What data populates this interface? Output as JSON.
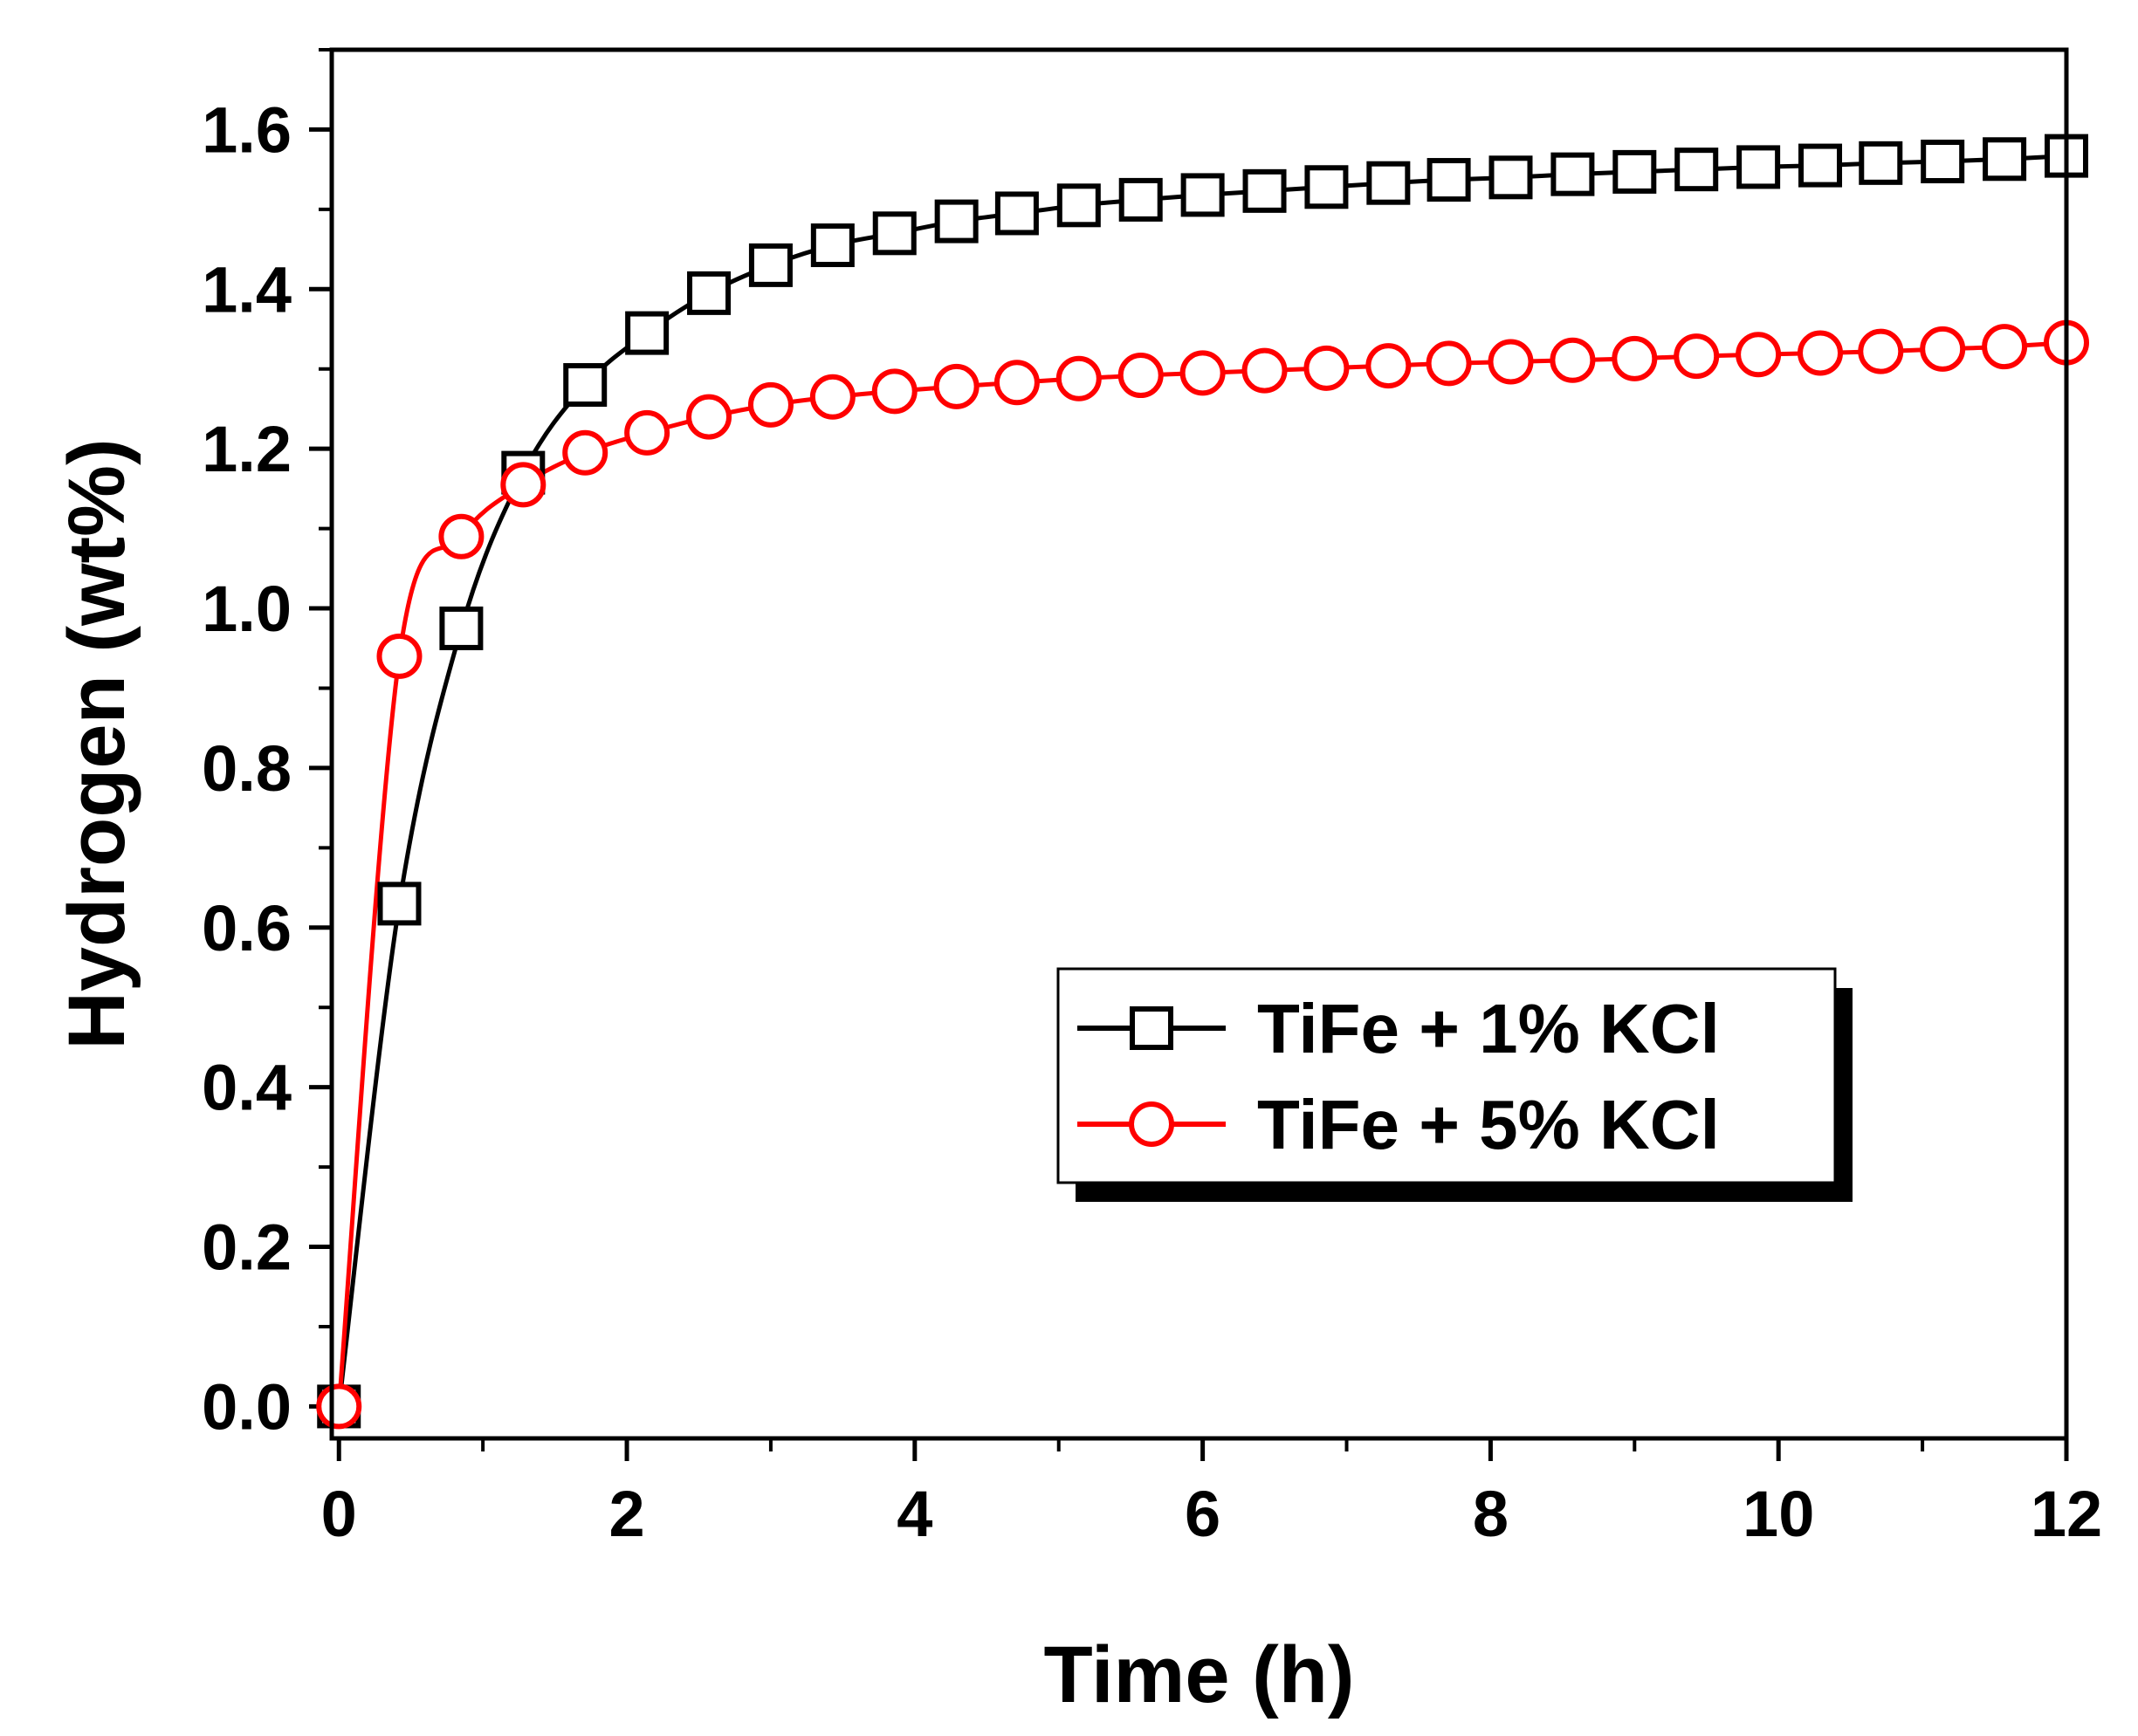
{
  "chart_data": {
    "type": "line",
    "title": "",
    "xlabel": "Time (h)",
    "ylabel": "Hydrogen (wt%)",
    "xlim": [
      -0.05,
      12
    ],
    "ylim": [
      -0.04,
      1.7
    ],
    "x_ticks": [
      0,
      2,
      4,
      6,
      8,
      10,
      12
    ],
    "x_tick_labels": [
      "0",
      "2",
      "4",
      "6",
      "8",
      "10",
      "12"
    ],
    "y_ticks": [
      0.0,
      0.2,
      0.4,
      0.6,
      0.8,
      1.0,
      1.2,
      1.4,
      1.6
    ],
    "y_tick_labels": [
      "0.0",
      "0.2",
      "0.4",
      "0.6",
      "0.8",
      "1.0",
      "1.2",
      "1.4",
      "1.6"
    ],
    "legend_position": "lower-right",
    "series": [
      {
        "name": "TiFe + 1% KCl",
        "label": "TiFe + 1% KCl",
        "color": "#000000",
        "marker": "square",
        "x": [
          0,
          0.42,
          0.85,
          1.28,
          1.71,
          2.14,
          2.57,
          3.0,
          3.43,
          3.86,
          4.29,
          4.71,
          5.14,
          5.57,
          6.0,
          6.43,
          6.86,
          7.29,
          7.71,
          8.14,
          8.57,
          9.0,
          9.43,
          9.86,
          10.29,
          10.71,
          11.14,
          11.57,
          12.0
        ],
        "values": [
          0.0,
          0.63,
          0.975,
          1.17,
          1.28,
          1.345,
          1.395,
          1.43,
          1.455,
          1.47,
          1.485,
          1.495,
          1.505,
          1.512,
          1.518,
          1.523,
          1.528,
          1.533,
          1.537,
          1.54,
          1.544,
          1.547,
          1.55,
          1.553,
          1.555,
          1.558,
          1.56,
          1.563,
          1.567
        ]
      },
      {
        "name": "TiFe + 5% KCl",
        "label": "TiFe + 5% KCl",
        "color": "#ff0000",
        "marker": "circle",
        "x": [
          0,
          0.42,
          0.85,
          1.28,
          1.71,
          2.14,
          2.57,
          3.0,
          3.43,
          3.86,
          4.29,
          4.71,
          5.14,
          5.57,
          6.0,
          6.43,
          6.86,
          7.29,
          7.71,
          8.14,
          8.57,
          9.0,
          9.43,
          9.86,
          10.29,
          10.71,
          11.14,
          11.57,
          12.0
        ],
        "values": [
          0.0,
          0.94,
          1.09,
          1.155,
          1.195,
          1.22,
          1.24,
          1.255,
          1.265,
          1.272,
          1.278,
          1.283,
          1.288,
          1.292,
          1.295,
          1.298,
          1.301,
          1.304,
          1.307,
          1.309,
          1.311,
          1.313,
          1.316,
          1.318,
          1.32,
          1.322,
          1.325,
          1.328,
          1.333
        ]
      }
    ]
  }
}
